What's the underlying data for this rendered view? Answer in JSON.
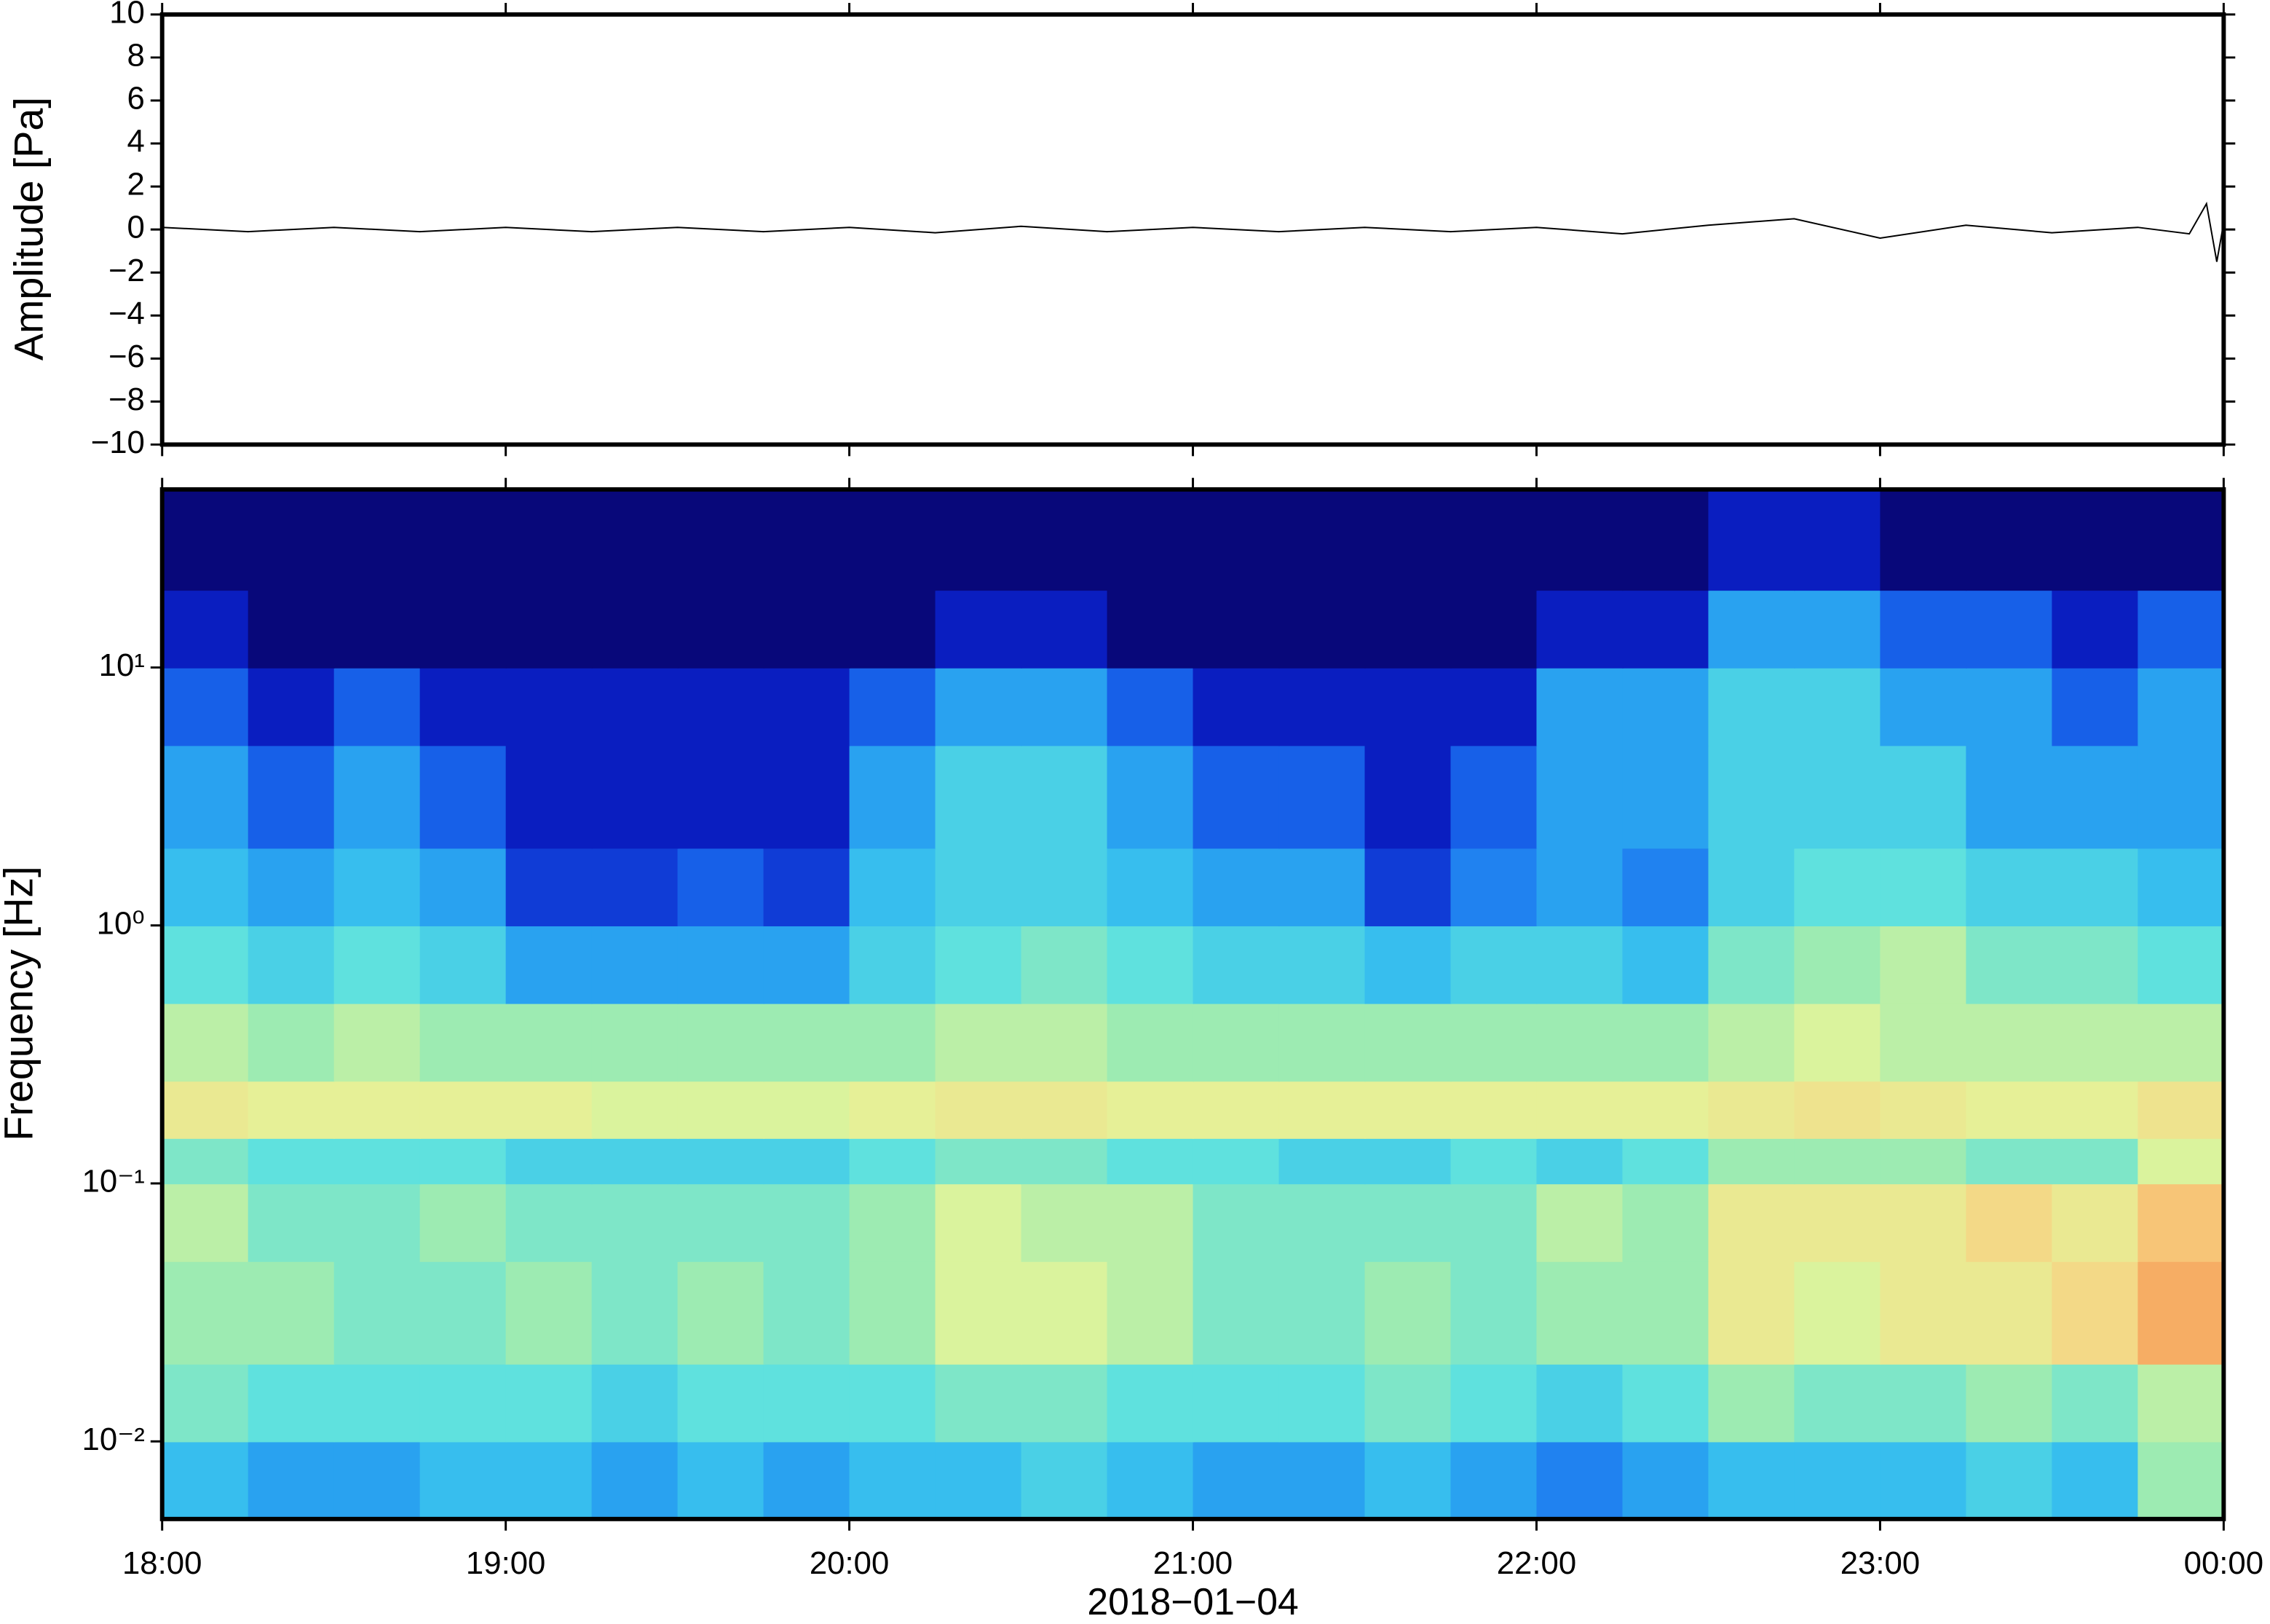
{
  "chart_data": [
    {
      "type": "line",
      "ylabel": "Amplitude [Pa]",
      "color": "#000000",
      "x": [
        18,
        18.25,
        18.5,
        18.75,
        19,
        19.25,
        19.5,
        19.75,
        20,
        20.25,
        20.5,
        20.75,
        21,
        21.25,
        21.5,
        21.75,
        22,
        22.25,
        22.5,
        22.75,
        23,
        23.25,
        23.5,
        23.75,
        23.9,
        23.95,
        23.98,
        24
      ],
      "values": [
        0.1,
        -0.1,
        0.1,
        -0.1,
        0.1,
        -0.1,
        0.1,
        -0.1,
        0.1,
        -0.15,
        0.15,
        -0.1,
        0.1,
        -0.1,
        0.1,
        -0.1,
        0.1,
        -0.2,
        0.2,
        0.5,
        -0.4,
        0.2,
        -0.15,
        0.1,
        -0.2,
        1.2,
        -1.5,
        0.3
      ],
      "xlim": [
        18,
        24
      ],
      "ylim": [
        -10,
        10
      ],
      "yticks": [
        {
          "value": -10,
          "label": "−10"
        },
        {
          "value": -8,
          "label": "−8"
        },
        {
          "value": -6,
          "label": "−6"
        },
        {
          "value": -4,
          "label": "−4"
        },
        {
          "value": -2,
          "label": "−2"
        },
        0,
        2,
        4,
        6,
        8,
        10
      ]
    },
    {
      "type": "heatmap",
      "ylabel": "Frequency [Hz]",
      "xlabel": "2018−01−04",
      "log_y": true,
      "xlim": [
        18,
        24
      ],
      "ylim": [
        0.005,
        49
      ],
      "xticks": [
        {
          "value": 18,
          "label": "18:00"
        },
        {
          "value": 19,
          "label": "19:00"
        },
        {
          "value": 20,
          "label": "20:00"
        },
        {
          "value": 21,
          "label": "21:00"
        },
        {
          "value": 22,
          "label": "22:00"
        },
        {
          "value": 23,
          "label": "23:00"
        },
        {
          "value": 24,
          "label": "00:00"
        }
      ],
      "yticks": [
        {
          "value": 0.01,
          "label": "10⁻²"
        },
        {
          "value": 0.1,
          "label": "10⁻¹"
        },
        {
          "value": 1,
          "label": "10⁰"
        },
        {
          "value": 10,
          "label": "10¹"
        }
      ],
      "colormap": [
        "#08087a",
        "#0a20c8",
        "#1a70f0",
        "#30b8f0",
        "#5ce0e0",
        "#a0ecb0",
        "#e4f49a",
        "#f8d080",
        "#f59a55",
        "#e04030"
      ],
      "xbins": [
        18,
        18.25,
        18.5,
        18.75,
        19,
        19.25,
        19.5,
        19.75,
        20,
        20.25,
        20.5,
        20.75,
        21,
        21.25,
        21.5,
        21.75,
        22,
        22.25,
        22.5,
        22.75,
        23,
        23.25,
        23.5,
        23.75,
        24
      ],
      "ybins": [
        0.005,
        0.01,
        0.02,
        0.05,
        0.1,
        0.15,
        0.25,
        0.5,
        1,
        2,
        5,
        10,
        20,
        49
      ],
      "values": [
        [
          0.35,
          0.3,
          0.3,
          0.35,
          0.35,
          0.3,
          0.35,
          0.3,
          0.35,
          0.35,
          0.4,
          0.35,
          0.3,
          0.3,
          0.35,
          0.3,
          0.25,
          0.3,
          0.35,
          0.35,
          0.35,
          0.4,
          0.35,
          0.55
        ],
        [
          0.5,
          0.45,
          0.45,
          0.45,
          0.45,
          0.4,
          0.45,
          0.45,
          0.45,
          0.5,
          0.5,
          0.45,
          0.45,
          0.45,
          0.5,
          0.45,
          0.4,
          0.45,
          0.55,
          0.5,
          0.5,
          0.55,
          0.5,
          0.6
        ],
        [
          0.55,
          0.55,
          0.5,
          0.5,
          0.55,
          0.5,
          0.55,
          0.5,
          0.55,
          0.65,
          0.65,
          0.6,
          0.5,
          0.5,
          0.55,
          0.5,
          0.55,
          0.55,
          0.7,
          0.65,
          0.7,
          0.7,
          0.75,
          0.85
        ],
        [
          0.6,
          0.5,
          0.5,
          0.55,
          0.5,
          0.5,
          0.5,
          0.5,
          0.55,
          0.65,
          0.6,
          0.6,
          0.5,
          0.5,
          0.5,
          0.5,
          0.6,
          0.55,
          0.7,
          0.7,
          0.7,
          0.75,
          0.7,
          0.8
        ],
        [
          0.5,
          0.45,
          0.45,
          0.45,
          0.4,
          0.4,
          0.4,
          0.4,
          0.45,
          0.5,
          0.5,
          0.45,
          0.45,
          0.4,
          0.4,
          0.45,
          0.4,
          0.45,
          0.55,
          0.55,
          0.55,
          0.5,
          0.5,
          0.65
        ],
        [
          0.7,
          0.68,
          0.68,
          0.68,
          0.68,
          0.65,
          0.65,
          0.65,
          0.68,
          0.7,
          0.7,
          0.68,
          0.68,
          0.68,
          0.68,
          0.68,
          0.68,
          0.68,
          0.7,
          0.72,
          0.7,
          0.68,
          0.68,
          0.72
        ],
        [
          0.6,
          0.55,
          0.6,
          0.55,
          0.55,
          0.55,
          0.55,
          0.55,
          0.55,
          0.6,
          0.6,
          0.55,
          0.55,
          0.55,
          0.55,
          0.55,
          0.55,
          0.55,
          0.6,
          0.65,
          0.6,
          0.6,
          0.6,
          0.6
        ],
        [
          0.45,
          0.4,
          0.45,
          0.4,
          0.3,
          0.3,
          0.3,
          0.3,
          0.4,
          0.45,
          0.5,
          0.45,
          0.4,
          0.4,
          0.35,
          0.4,
          0.4,
          0.35,
          0.5,
          0.55,
          0.6,
          0.5,
          0.5,
          0.45
        ],
        [
          0.35,
          0.3,
          0.35,
          0.3,
          0.15,
          0.15,
          0.2,
          0.15,
          0.35,
          0.4,
          0.4,
          0.35,
          0.3,
          0.3,
          0.15,
          0.25,
          0.3,
          0.25,
          0.4,
          0.45,
          0.45,
          0.4,
          0.4,
          0.35
        ],
        [
          0.3,
          0.2,
          0.3,
          0.2,
          0.1,
          0.1,
          0.1,
          0.1,
          0.3,
          0.4,
          0.4,
          0.3,
          0.2,
          0.2,
          0.1,
          0.2,
          0.3,
          0.3,
          0.4,
          0.4,
          0.4,
          0.3,
          0.3,
          0.3
        ],
        [
          0.2,
          0.1,
          0.2,
          0.1,
          0.1,
          0.1,
          0.1,
          0.1,
          0.2,
          0.3,
          0.3,
          0.2,
          0.1,
          0.1,
          0.1,
          0.1,
          0.3,
          0.3,
          0.4,
          0.4,
          0.3,
          0.3,
          0.2,
          0.3
        ],
        [
          0.1,
          0,
          0,
          0,
          0,
          0,
          0,
          0,
          0,
          0.1,
          0.1,
          0,
          0,
          0,
          0,
          0,
          0.1,
          0.1,
          0.3,
          0.3,
          0.2,
          0.2,
          0.1,
          0.2
        ],
        [
          0,
          0,
          0,
          0,
          0,
          0,
          0,
          0,
          0,
          0,
          0,
          0,
          0,
          0,
          0,
          0,
          0,
          0,
          0.1,
          0.1,
          0,
          0,
          0,
          0
        ]
      ]
    }
  ]
}
